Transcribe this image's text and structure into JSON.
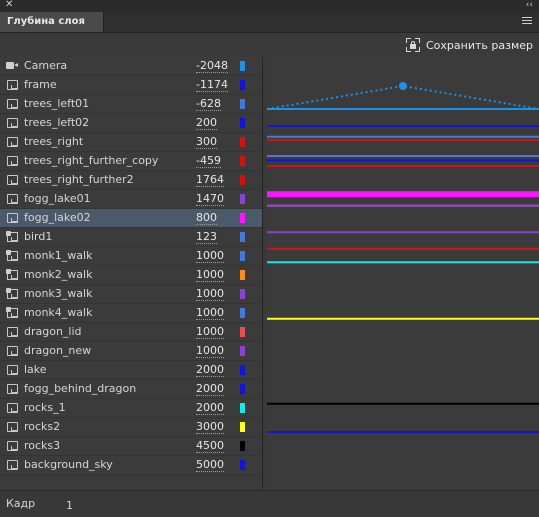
{
  "panel": {
    "tab_label": "Глубина слоя",
    "save_label": "Сохранить размер"
  },
  "layers": [
    {
      "name": "Camera",
      "depth": "-2048",
      "color": "#1e90e8",
      "icon": "camera-icon"
    },
    {
      "name": "frame",
      "depth": "-1174",
      "color": "#1414d4",
      "icon": "frame-icon"
    },
    {
      "name": "trees_left01",
      "depth": "-628",
      "color": "#4a78d8",
      "icon": "frame-icon"
    },
    {
      "name": "trees_left02",
      "depth": "200",
      "color": "#1414d4",
      "icon": "frame-icon"
    },
    {
      "name": "trees_right",
      "depth": "300",
      "color": "#cc1414",
      "icon": "frame-icon"
    },
    {
      "name": "trees_right_further_copy",
      "depth": "-459",
      "color": "#cc1414",
      "icon": "frame-icon"
    },
    {
      "name": "trees_right_further2",
      "depth": "1764",
      "color": "#cc1414",
      "icon": "frame-icon"
    },
    {
      "name": "fogg_lake01",
      "depth": "1470",
      "color": "#8844cc",
      "icon": "frame-icon"
    },
    {
      "name": "fogg_lake02",
      "depth": "800",
      "color": "#ff14ff",
      "icon": "frame-icon",
      "selected": true
    },
    {
      "name": "bird1",
      "depth": "123",
      "color": "#4a78d8",
      "icon": "bone-icon"
    },
    {
      "name": "monk1_walk",
      "depth": "1000",
      "color": "#4a78d8",
      "icon": "bone-icon"
    },
    {
      "name": "monk2_walk",
      "depth": "1000",
      "color": "#ff8c1a",
      "icon": "bone-icon"
    },
    {
      "name": "monk3_walk",
      "depth": "1000",
      "color": "#8844cc",
      "icon": "bone-icon"
    },
    {
      "name": "monk4_walk",
      "depth": "1000",
      "color": "#4a78d8",
      "icon": "bone-icon"
    },
    {
      "name": "dragon_lid",
      "depth": "1000",
      "color": "#e85050",
      "icon": "frame-icon"
    },
    {
      "name": "dragon_new",
      "depth": "1000",
      "color": "#8844cc",
      "icon": "frame-icon"
    },
    {
      "name": "lake",
      "depth": "2000",
      "color": "#1414d4",
      "icon": "frame-icon"
    },
    {
      "name": "fogg_behind_dragon",
      "depth": "2000",
      "color": "#1414d4",
      "icon": "frame-icon"
    },
    {
      "name": "rocks_1",
      "depth": "2000",
      "color": "#14e8e8",
      "icon": "frame-icon"
    },
    {
      "name": "rocks2",
      "depth": "3000",
      "color": "#ffff14",
      "icon": "frame-icon"
    },
    {
      "name": "rocks3",
      "depth": "4500",
      "color": "#000000",
      "icon": "frame-icon"
    },
    {
      "name": "background_sky",
      "depth": "5000",
      "color": "#1414d4",
      "icon": "frame-icon"
    }
  ],
  "footer": {
    "frame_label": "Кадр",
    "frame_value": "1"
  }
}
